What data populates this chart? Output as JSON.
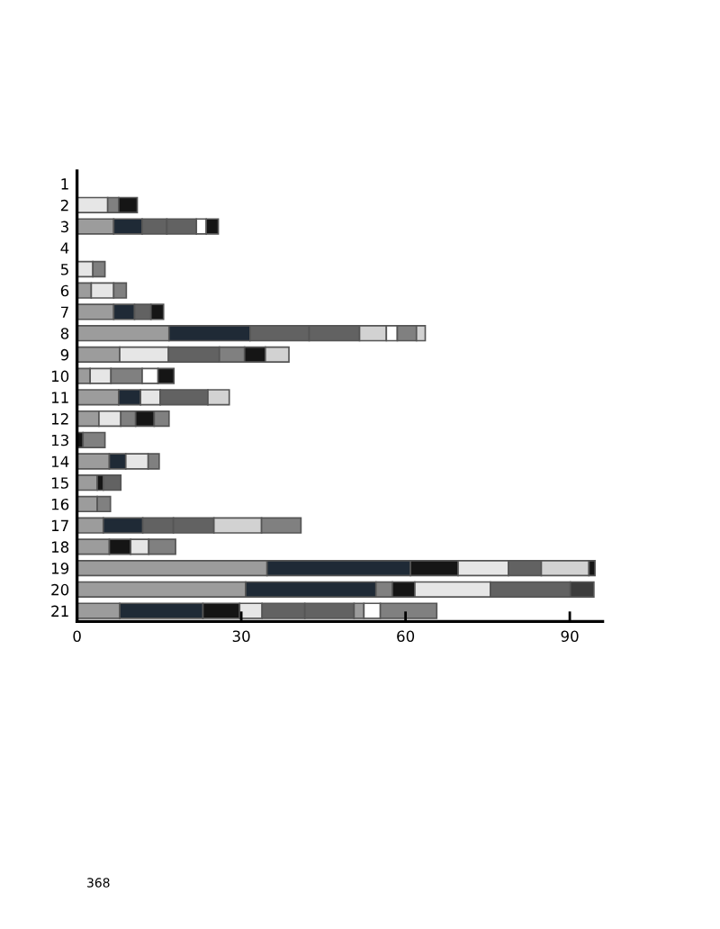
{
  "chart_data": {
    "type": "bar",
    "orientation": "horizontal",
    "stacked": true,
    "categories": [
      "1",
      "2",
      "3",
      "4",
      "5",
      "6",
      "7",
      "8",
      "9",
      "10",
      "11",
      "12",
      "13",
      "14",
      "15",
      "16",
      "17",
      "18",
      "19",
      "20",
      "21"
    ],
    "series": [
      {
        "values": [
          null,
          5.6,
          6.7,
          null,
          2.9,
          2.6,
          6.7,
          16.8,
          7.8,
          2.4,
          7.6,
          4.0,
          1.1,
          5.9,
          3.7,
          3.7,
          4.8,
          5.9,
          34.7,
          30.8,
          7.8
        ],
        "colors": [
          null,
          "#e6e6e6",
          "#9c9c9c",
          null,
          "#e6e6e6",
          "#9c9c9c",
          "#9c9c9c",
          "#9c9c9c",
          "#9c9c9c",
          "#9c9c9c",
          "#9c9c9c",
          "#9c9c9c",
          "#151515",
          "#9c9c9c",
          "#9c9c9c",
          "#9c9c9c",
          "#9c9c9c",
          "#9c9c9c",
          "#9c9c9c",
          "#9c9c9c",
          "#9c9c9c"
        ]
      },
      {
        "values": [
          null,
          2.0,
          5.2,
          null,
          2.2,
          4.1,
          3.8,
          14.8,
          8.9,
          3.8,
          4.0,
          4.0,
          4.0,
          3.0,
          1.1,
          2.4,
          7.2,
          3.9,
          26.2,
          23.8,
          15.2
        ],
        "colors": [
          null,
          "#808080",
          "#1f2a36",
          null,
          "#808080",
          "#e6e6e6",
          "#1f2a36",
          "#1f2a36",
          "#e6e6e6",
          "#e6e6e6",
          "#1f2a36",
          "#e6e6e6",
          "#808080",
          "#1f2a36",
          "#151515",
          "#808080",
          "#1f2a36",
          "#151515",
          "#1f2a36",
          "#1f2a36",
          "#1f2a36"
        ]
      },
      {
        "values": [
          null,
          3.4,
          4.5,
          null,
          null,
          2.3,
          3.0,
          10.8,
          9.3,
          5.7,
          3.6,
          2.7,
          null,
          4.1,
          3.2,
          null,
          5.6,
          3.3,
          8.7,
          3.0,
          6.7
        ],
        "colors": [
          null,
          "#151515",
          "#626262",
          null,
          null,
          "#808080",
          "#626262",
          "#626262",
          "#626262",
          "#808080",
          "#e6e6e6",
          "#808080",
          null,
          "#e6e6e6",
          "#626262",
          null,
          "#626262",
          "#e6e6e6",
          "#151515",
          "#808080",
          "#151515"
        ]
      },
      {
        "values": [
          null,
          null,
          5.4,
          null,
          null,
          null,
          2.3,
          9.2,
          4.6,
          2.9,
          8.7,
          3.4,
          null,
          2.0,
          null,
          null,
          7.4,
          4.9,
          9.2,
          4.1,
          4.1
        ],
        "colors": [
          null,
          null,
          "#626262",
          null,
          null,
          null,
          "#151515",
          "#626262",
          "#808080",
          "#ffffff",
          "#626262",
          "#151515",
          null,
          "#808080",
          null,
          null,
          "#626262",
          "#808080",
          "#e6e6e6",
          "#151515",
          "#e6e6e6"
        ]
      },
      {
        "values": [
          null,
          null,
          1.8,
          null,
          null,
          null,
          null,
          4.9,
          3.8,
          2.9,
          3.9,
          2.7,
          null,
          null,
          null,
          null,
          8.7,
          null,
          6.0,
          13.8,
          7.8
        ],
        "colors": [
          null,
          null,
          "#ffffff",
          null,
          null,
          null,
          null,
          "#d2d2d2",
          "#151515",
          "#151515",
          "#d2d2d2",
          "#808080",
          null,
          null,
          null,
          null,
          "#d2d2d2",
          null,
          "#626262",
          "#e6e6e6",
          "#626262"
        ]
      },
      {
        "values": [
          null,
          null,
          2.2,
          null,
          null,
          null,
          null,
          2.0,
          4.3,
          null,
          null,
          null,
          null,
          null,
          null,
          null,
          7.2,
          null,
          8.7,
          14.6,
          9.0
        ],
        "colors": [
          null,
          null,
          "#151515",
          null,
          null,
          null,
          null,
          "#ffffff",
          "#d2d2d2",
          null,
          null,
          null,
          null,
          null,
          null,
          null,
          "#808080",
          null,
          "#d2d2d2",
          "#626262",
          "#626262"
        ]
      },
      {
        "values": [
          null,
          null,
          null,
          null,
          null,
          null,
          null,
          3.5,
          null,
          null,
          null,
          null,
          null,
          null,
          null,
          null,
          null,
          null,
          1.1,
          4.3,
          1.8
        ],
        "colors": [
          null,
          null,
          null,
          null,
          null,
          null,
          null,
          "#808080",
          null,
          null,
          null,
          null,
          null,
          null,
          null,
          null,
          null,
          null,
          "#151515",
          "#3c3c3c",
          "#9c9c9c"
        ]
      },
      {
        "values": [
          null,
          null,
          null,
          null,
          null,
          null,
          null,
          1.6,
          null,
          null,
          null,
          null,
          null,
          null,
          null,
          null,
          null,
          null,
          null,
          null,
          3.0
        ],
        "colors": [
          null,
          null,
          null,
          null,
          null,
          null,
          null,
          "#d2d2d2",
          null,
          null,
          null,
          null,
          null,
          null,
          null,
          null,
          null,
          null,
          null,
          null,
          "#ffffff"
        ]
      },
      {
        "values": [
          null,
          null,
          null,
          null,
          null,
          null,
          null,
          null,
          null,
          null,
          null,
          null,
          null,
          null,
          null,
          null,
          null,
          null,
          null,
          null,
          10.3
        ],
        "colors": [
          null,
          null,
          null,
          null,
          null,
          null,
          null,
          null,
          null,
          null,
          null,
          null,
          null,
          null,
          null,
          null,
          null,
          null,
          null,
          null,
          "#808080"
        ]
      }
    ],
    "xlim": [
      0,
      96
    ],
    "xticks": [
      0,
      30,
      60,
      90
    ],
    "grid": false,
    "legend": false,
    "annotations": [
      "368"
    ]
  }
}
